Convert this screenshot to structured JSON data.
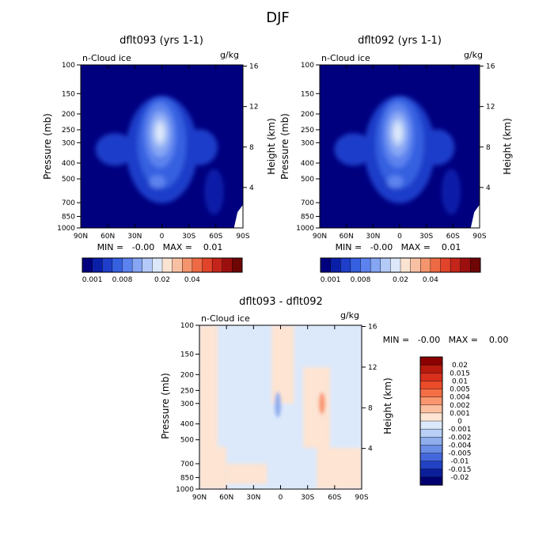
{
  "page": {
    "title": "DJF"
  },
  "panels": [
    {
      "title": "dflt093 (yrs 1-1)",
      "variable": "n-Cloud ice",
      "units": "g/kg",
      "xlabel": "",
      "ylabel": "Pressure (mb)",
      "y2label": "Height (km)",
      "stats": "MIN =   -0.00   MAX =    0.01"
    },
    {
      "title": "dflt092 (yrs 1-1)",
      "variable": "n-Cloud ice",
      "units": "g/kg",
      "xlabel": "",
      "ylabel": "Pressure (mb)",
      "y2label": "Height (km)",
      "stats": "MIN =   -0.00   MAX =    0.01"
    },
    {
      "title": "dflt093 - dflt092",
      "variable": "n-Cloud ice",
      "units": "g/kg",
      "xlabel": "",
      "ylabel": "Pressure (mb)",
      "y2label": "Height (km)",
      "stats": "MIN =   -0.00   MAX =    0.00"
    }
  ],
  "chart_data": [
    {
      "type": "heatmap",
      "title": "dflt093 (yrs 1-1)",
      "x_ticks": [
        "90N",
        "60N",
        "30N",
        "0",
        "30S",
        "60S",
        "90S"
      ],
      "y_ticks": [
        "100",
        "150",
        "200",
        "250",
        "300",
        "400",
        "500",
        "700",
        "850",
        "1000"
      ],
      "y2_ticks": [
        "16",
        "12",
        "8",
        "4"
      ],
      "xlim": [
        90,
        -90
      ],
      "ylim": [
        1000,
        100
      ],
      "y_scale": "log",
      "max_location": {
        "lat": 0,
        "pressure": 270,
        "value": 0.01
      },
      "colorbar": {
        "labels": [
          "0.001",
          "0.008",
          "0.02",
          "0.04"
        ],
        "colors": [
          "#00007f",
          "#0a1fa8",
          "#1f3ec9",
          "#3560e0",
          "#5b82ee",
          "#86a6f4",
          "#b3c9f7",
          "#dce8fa",
          "#fbe3d2",
          "#f8c0a2",
          "#f4956d",
          "#ee6a45",
          "#e0442a",
          "#c4251a",
          "#9c0f0f",
          "#6f0606"
        ]
      }
    },
    {
      "type": "heatmap",
      "title": "dflt092 (yrs 1-1)",
      "x_ticks": [
        "90N",
        "60N",
        "30N",
        "0",
        "30S",
        "60S",
        "90S"
      ],
      "y_ticks": [
        "100",
        "150",
        "200",
        "250",
        "300",
        "400",
        "500",
        "700",
        "850",
        "1000"
      ],
      "y2_ticks": [
        "16",
        "12",
        "8",
        "4"
      ],
      "xlim": [
        90,
        -90
      ],
      "ylim": [
        1000,
        100
      ],
      "y_scale": "log",
      "max_location": {
        "lat": 0,
        "pressure": 270,
        "value": 0.01
      },
      "colorbar": {
        "labels": [
          "0.001",
          "0.008",
          "0.02",
          "0.04"
        ],
        "colors": [
          "#00007f",
          "#0a1fa8",
          "#1f3ec9",
          "#3560e0",
          "#5b82ee",
          "#86a6f4",
          "#b3c9f7",
          "#dce8fa",
          "#fbe3d2",
          "#f8c0a2",
          "#f4956d",
          "#ee6a45",
          "#e0442a",
          "#c4251a",
          "#9c0f0f",
          "#6f0606"
        ]
      }
    },
    {
      "type": "heatmap",
      "title": "dflt093 - dflt092",
      "x_ticks": [
        "90N",
        "60N",
        "30N",
        "0",
        "30S",
        "60S",
        "90S"
      ],
      "y_ticks": [
        "100",
        "150",
        "200",
        "250",
        "300",
        "400",
        "500",
        "700",
        "850",
        "1000"
      ],
      "y2_ticks": [
        "16",
        "12",
        "8",
        "4"
      ],
      "xlim": [
        90,
        -90
      ],
      "ylim": [
        1000,
        100
      ],
      "y_scale": "log",
      "colorbar": {
        "labels": [
          "0.02",
          "0.015",
          "0.01",
          "0.005",
          "0.004",
          "0.002",
          "0.001",
          "0",
          "-0.001",
          "-0.002",
          "-0.004",
          "-0.005",
          "-0.01",
          "-0.015",
          "-0.02"
        ],
        "colors": [
          "#8b0000",
          "#b81a0e",
          "#d8301d",
          "#ec4b2a",
          "#f46e46",
          "#f99670",
          "#fbbf9f",
          "#fde4d3",
          "#dce9fb",
          "#b8cff6",
          "#8faeee",
          "#6a8de6",
          "#4468dc",
          "#2242c4",
          "#0b1f9a",
          "#000070"
        ]
      }
    }
  ]
}
